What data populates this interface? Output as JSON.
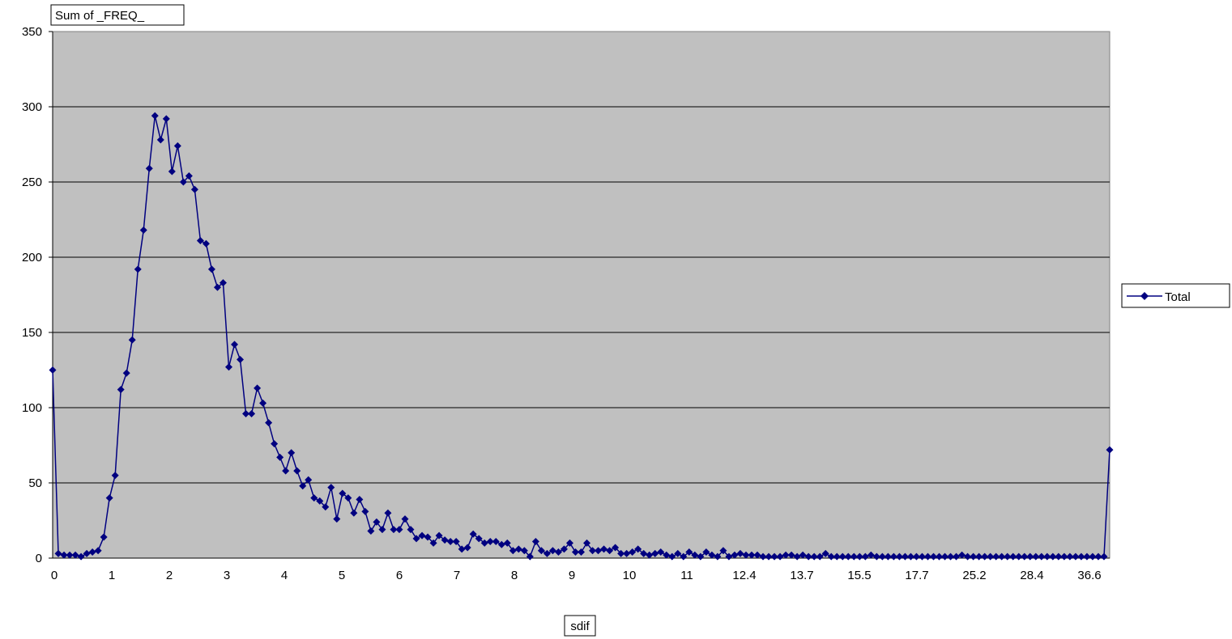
{
  "chart_data": {
    "type": "line",
    "field_label": "Sum of _FREQ_",
    "xlabel": "sdif",
    "ylabel": "",
    "ylim": [
      0,
      350
    ],
    "yticks": [
      0,
      50,
      100,
      150,
      200,
      250,
      300,
      350
    ],
    "x_tick_labels": [
      "0",
      "1",
      "2",
      "3",
      "4",
      "5",
      "6",
      "7",
      "8",
      "9",
      "10",
      "11",
      "12.4",
      "13.7",
      "15.5",
      "17.7",
      "25.2",
      "28.4",
      "36.6"
    ],
    "grid": "horizontal",
    "plot_background": "#c0c0c0",
    "series_color": "#000080",
    "marker": "diamond",
    "legend_position": "right",
    "series": [
      {
        "name": "Total",
        "values": [
          125,
          3,
          2,
          2,
          2,
          1,
          3,
          4,
          5,
          14,
          40,
          55,
          112,
          123,
          145,
          192,
          218,
          259,
          294,
          278,
          292,
          257,
          274,
          250,
          254,
          245,
          211,
          209,
          192,
          180,
          183,
          127,
          142,
          132,
          96,
          96,
          113,
          103,
          90,
          76,
          67,
          58,
          70,
          58,
          48,
          52,
          40,
          38,
          34,
          47,
          26,
          43,
          40,
          30,
          39,
          31,
          18,
          24,
          19,
          30,
          19,
          19,
          26,
          19,
          13,
          15,
          14,
          10,
          15,
          12,
          11,
          11,
          6,
          7,
          16,
          13,
          10,
          11,
          11,
          9,
          10,
          5,
          6,
          5,
          1,
          11,
          5,
          3,
          5,
          4,
          6,
          10,
          4,
          4,
          10,
          5,
          5,
          6,
          5,
          7,
          3,
          3,
          4,
          6,
          3,
          2,
          3,
          4,
          2,
          1,
          3,
          1,
          4,
          2,
          1,
          4,
          2,
          1,
          5,
          1,
          2,
          3,
          2,
          2,
          2,
          1,
          1,
          1,
          1,
          2,
          2,
          1,
          2,
          1,
          1,
          1,
          3,
          1,
          1,
          1,
          1,
          1,
          1,
          1,
          2,
          1,
          1,
          1,
          1,
          1,
          1,
          1,
          1,
          1,
          1,
          1,
          1,
          1,
          1,
          1,
          2,
          1,
          1,
          1,
          1,
          1,
          1,
          1,
          1,
          1,
          1,
          1,
          1,
          1,
          1,
          1,
          1,
          1,
          1,
          1,
          1,
          1,
          1,
          1,
          1,
          1,
          72
        ]
      }
    ]
  }
}
